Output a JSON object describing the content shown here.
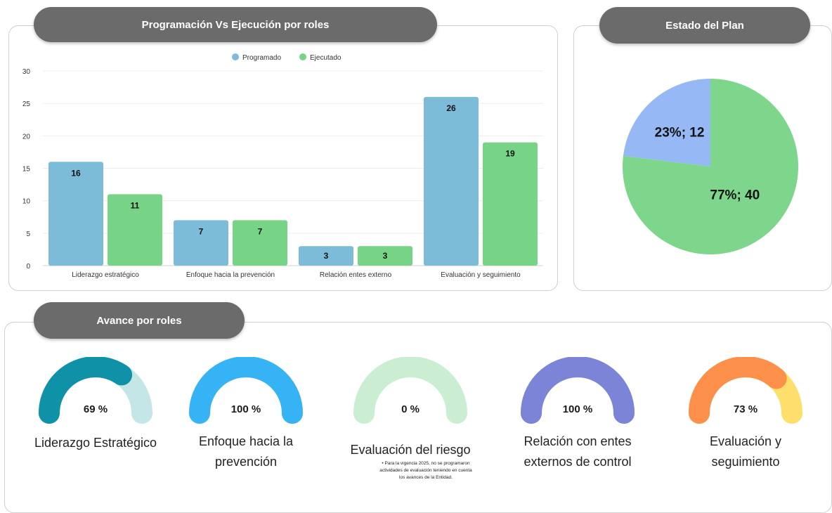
{
  "bar_title": "Programación Vs Ejecución por roles",
  "pie_title": "Estado del Plan",
  "gauge_title": "Avance por roles",
  "colors": {
    "programado": "#7dbcd8",
    "ejecutado": "#77d386",
    "pie_a": "#96b8f5",
    "pie_b": "#7dd68c"
  },
  "chart_data": [
    {
      "type": "bar",
      "title": "Programación Vs Ejecución por roles",
      "categories": [
        "Liderazgo estratégico",
        "Enfoque hacia la prevención",
        "Relación entes externo",
        "Evaluación y seguimiento"
      ],
      "series": [
        {
          "name": "Programado",
          "values": [
            16,
            7,
            3,
            26
          ]
        },
        {
          "name": "Ejecutado",
          "values": [
            11,
            7,
            3,
            19
          ]
        }
      ],
      "ylim": [
        0,
        30
      ],
      "yticks": [
        0,
        5,
        10,
        15,
        20,
        25,
        30
      ],
      "legend": "top-center",
      "grid": true
    },
    {
      "type": "pie",
      "title": "Estado del Plan",
      "slices": [
        {
          "label": "23%; 12",
          "value": 12
        },
        {
          "label": "77%; 40",
          "value": 40
        }
      ]
    }
  ],
  "gauges": [
    {
      "pct": "69 %",
      "value": 0.69,
      "label_lines": [
        "Liderazgo Estratégico"
      ],
      "fill": "#0f91a8",
      "track": "#c4e6e6"
    },
    {
      "pct": "100 %",
      "value": 1.0,
      "label_lines": [
        "Enfoque hacia la",
        "prevención"
      ],
      "fill": "#36b3f5",
      "track": "#bfe3f7"
    },
    {
      "pct": "0 %",
      "value": 0.0,
      "label_lines": [
        "Evaluación del riesgo"
      ],
      "fill": "#8fd69f",
      "track": "#cbeed3"
    },
    {
      "pct": "100 %",
      "value": 1.0,
      "label_lines": [
        "Relación con entes",
        "externos de control"
      ],
      "fill": "#7b84d6",
      "track": "#cfd2f2"
    },
    {
      "pct": "73 %",
      "value": 0.73,
      "label_lines": [
        "Evaluación y",
        "seguimiento"
      ],
      "fill": "#fc8f4a",
      "track": "#fedf6b"
    }
  ],
  "gauge_note": "Para la vigencia 2025, no se programaron actividades de evaluación teniendo en cuenta los avances de la Entidad."
}
